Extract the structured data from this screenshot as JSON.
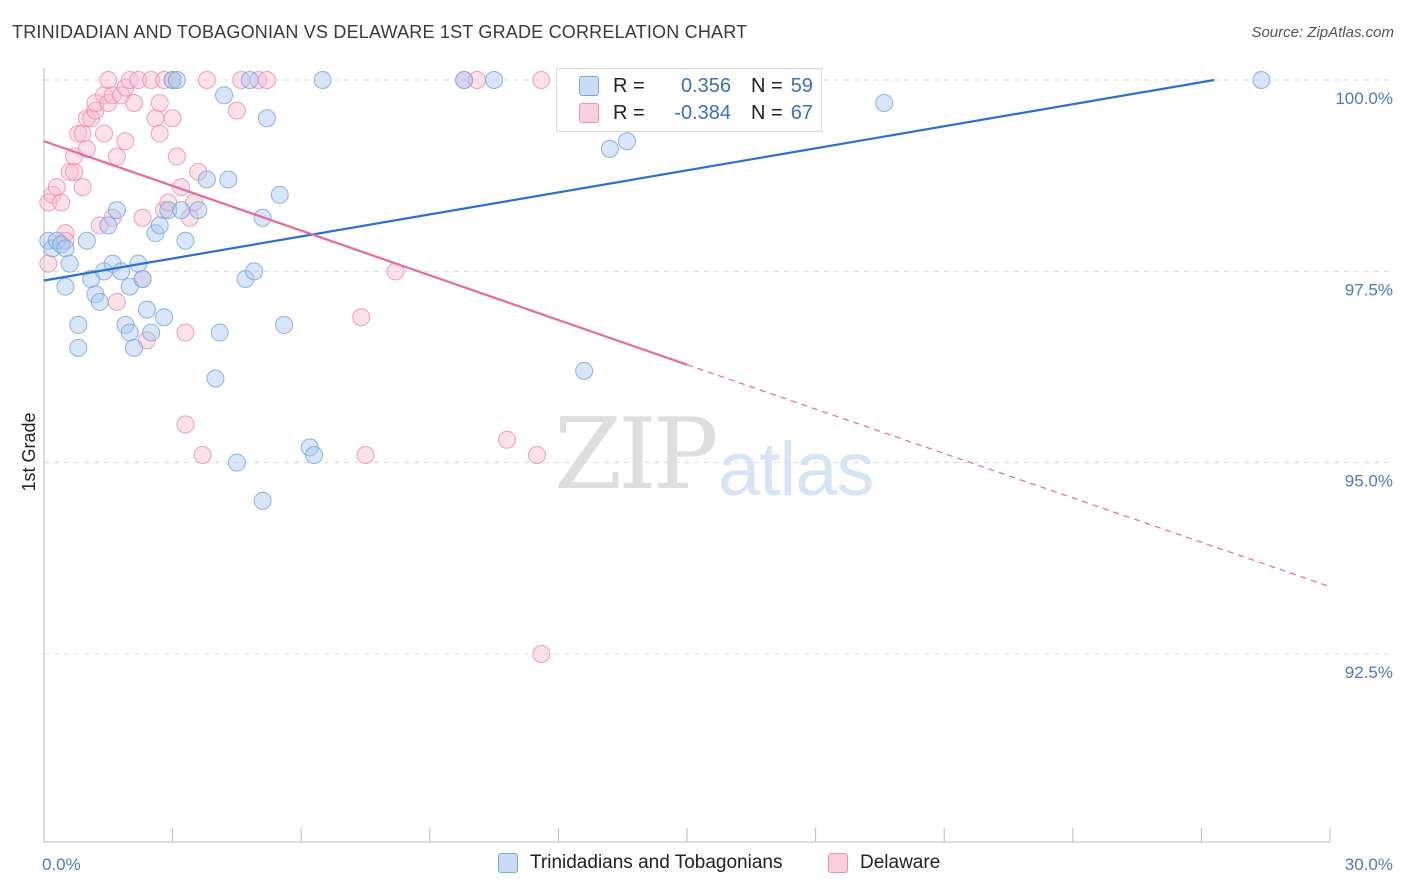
{
  "title": "TRINIDADIAN AND TOBAGONIAN VS DELAWARE 1ST GRADE CORRELATION CHART",
  "source": "Source: ZipAtlas.com",
  "watermark": {
    "zip": "ZIP",
    "atlas": "atlas"
  },
  "legend": {
    "rows": [
      {
        "r_label": "R =",
        "r_value": "0.356",
        "n_label": "N =",
        "n_value": "59"
      },
      {
        "r_label": "R =",
        "r_value": "-0.384",
        "n_label": "N =",
        "n_value": "67"
      }
    ]
  },
  "colors": {
    "blue": "#7aa8e0",
    "blue_line": "#2b6fd0",
    "blue_fill": "#a9c8ee",
    "pink": "#f08fb0",
    "pink_line": "#e86a98",
    "pink_fill": "#f7bcd1",
    "tick_text": "#4a7cc4",
    "grid": "#dddddd"
  },
  "chart_data": {
    "type": "scatter",
    "title": "TRINIDADIAN AND TOBAGONIAN VS DELAWARE 1ST GRADE CORRELATION CHART",
    "xlabel": "",
    "ylabel": "1st Grade",
    "xlim": [
      0.0,
      30.0
    ],
    "ylim": [
      90.0,
      100.3
    ],
    "x_tick_labels": [
      "0.0%",
      "30.0%"
    ],
    "y_ticks": [
      92.5,
      95.0,
      97.5,
      100.0
    ],
    "y_tick_labels": [
      "92.5%",
      "95.0%",
      "97.5%",
      "100.0%"
    ],
    "legend_position": "bottom",
    "series": [
      {
        "name": "Trinidadians and Tobagonians",
        "color": "blue",
        "points": [
          [
            0.1,
            97.9
          ],
          [
            0.2,
            97.8
          ],
          [
            0.3,
            97.9
          ],
          [
            0.4,
            97.85
          ],
          [
            0.5,
            97.8
          ],
          [
            0.5,
            97.3
          ],
          [
            0.6,
            97.6
          ],
          [
            0.8,
            96.8
          ],
          [
            0.8,
            96.5
          ],
          [
            1.0,
            97.9
          ],
          [
            1.1,
            97.4
          ],
          [
            1.2,
            97.2
          ],
          [
            1.3,
            97.1
          ],
          [
            1.4,
            97.5
          ],
          [
            1.5,
            98.1
          ],
          [
            1.6,
            97.6
          ],
          [
            1.7,
            98.3
          ],
          [
            1.8,
            97.5
          ],
          [
            1.9,
            96.8
          ],
          [
            2.0,
            97.3
          ],
          [
            2.0,
            96.7
          ],
          [
            2.1,
            96.5
          ],
          [
            2.2,
            97.6
          ],
          [
            2.3,
            97.4
          ],
          [
            2.4,
            97.0
          ],
          [
            2.5,
            96.7
          ],
          [
            2.6,
            98.0
          ],
          [
            2.7,
            98.1
          ],
          [
            2.8,
            96.9
          ],
          [
            2.9,
            98.3
          ],
          [
            3.0,
            100.0
          ],
          [
            3.1,
            100.0
          ],
          [
            3.2,
            98.3
          ],
          [
            3.3,
            97.9
          ],
          [
            3.6,
            98.3
          ],
          [
            3.8,
            98.7
          ],
          [
            4.0,
            96.1
          ],
          [
            4.1,
            96.7
          ],
          [
            4.2,
            99.8
          ],
          [
            4.3,
            98.7
          ],
          [
            4.5,
            95.0
          ],
          [
            4.7,
            97.4
          ],
          [
            4.8,
            100.0
          ],
          [
            4.9,
            97.5
          ],
          [
            5.1,
            94.5
          ],
          [
            5.1,
            98.2
          ],
          [
            5.2,
            99.5
          ],
          [
            5.5,
            98.5
          ],
          [
            5.6,
            96.8
          ],
          [
            6.2,
            95.2
          ],
          [
            6.3,
            95.1
          ],
          [
            6.5,
            100.0
          ],
          [
            9.8,
            100.0
          ],
          [
            10.5,
            100.0
          ],
          [
            12.6,
            96.2
          ],
          [
            13.2,
            99.1
          ],
          [
            13.6,
            99.2
          ],
          [
            19.6,
            99.7
          ],
          [
            28.4,
            100.0
          ]
        ],
        "trend": {
          "x0": 0.0,
          "y0": 97.38,
          "x1": 27.3,
          "y1": 100.0
        }
      },
      {
        "name": "Delaware",
        "color": "pink",
        "points": [
          [
            0.1,
            97.6
          ],
          [
            0.1,
            98.4
          ],
          [
            0.2,
            98.5
          ],
          [
            0.3,
            98.6
          ],
          [
            0.4,
            98.4
          ],
          [
            0.5,
            98.0
          ],
          [
            0.5,
            97.9
          ],
          [
            0.6,
            98.8
          ],
          [
            0.7,
            98.8
          ],
          [
            0.7,
            99.0
          ],
          [
            0.8,
            99.3
          ],
          [
            0.9,
            98.6
          ],
          [
            0.9,
            99.3
          ],
          [
            1.0,
            99.1
          ],
          [
            1.0,
            99.5
          ],
          [
            1.1,
            99.5
          ],
          [
            1.2,
            99.6
          ],
          [
            1.2,
            99.7
          ],
          [
            1.3,
            98.1
          ],
          [
            1.4,
            99.3
          ],
          [
            1.4,
            99.8
          ],
          [
            1.5,
            99.7
          ],
          [
            1.5,
            100.0
          ],
          [
            1.6,
            98.2
          ],
          [
            1.6,
            99.8
          ],
          [
            1.7,
            97.1
          ],
          [
            1.7,
            99.0
          ],
          [
            1.8,
            99.8
          ],
          [
            1.9,
            99.9
          ],
          [
            1.9,
            99.2
          ],
          [
            2.0,
            100.0
          ],
          [
            2.1,
            99.7
          ],
          [
            2.2,
            100.0
          ],
          [
            2.3,
            98.2
          ],
          [
            2.3,
            97.4
          ],
          [
            2.4,
            96.6
          ],
          [
            2.5,
            100.0
          ],
          [
            2.6,
            99.5
          ],
          [
            2.7,
            99.7
          ],
          [
            2.7,
            99.3
          ],
          [
            2.8,
            100.0
          ],
          [
            2.8,
            98.3
          ],
          [
            2.9,
            98.4
          ],
          [
            3.0,
            100.0
          ],
          [
            3.0,
            99.5
          ],
          [
            3.1,
            99.0
          ],
          [
            3.2,
            98.6
          ],
          [
            3.3,
            95.5
          ],
          [
            3.3,
            96.7
          ],
          [
            3.4,
            98.2
          ],
          [
            3.5,
            98.4
          ],
          [
            3.6,
            98.8
          ],
          [
            3.7,
            95.1
          ],
          [
            3.8,
            100.0
          ],
          [
            4.5,
            99.6
          ],
          [
            4.6,
            100.0
          ],
          [
            5.0,
            100.0
          ],
          [
            5.2,
            100.0
          ],
          [
            7.4,
            96.9
          ],
          [
            7.5,
            95.1
          ],
          [
            8.2,
            97.5
          ],
          [
            9.8,
            100.0
          ],
          [
            10.1,
            100.0
          ],
          [
            10.8,
            95.3
          ],
          [
            11.5,
            95.1
          ],
          [
            11.6,
            100.0
          ],
          [
            11.6,
            92.5
          ]
        ],
        "trend": {
          "x0": 0.0,
          "y0": 99.2,
          "x1": 15.0,
          "y1": 96.28
        },
        "trend_dashed": {
          "x0": 15.0,
          "y0": 96.28,
          "x1": 30.0,
          "y1": 93.38
        }
      }
    ]
  },
  "bottom_legend": {
    "items": [
      {
        "label": "Trinidadians and Tobagonians"
      },
      {
        "label": "Delaware"
      }
    ]
  }
}
